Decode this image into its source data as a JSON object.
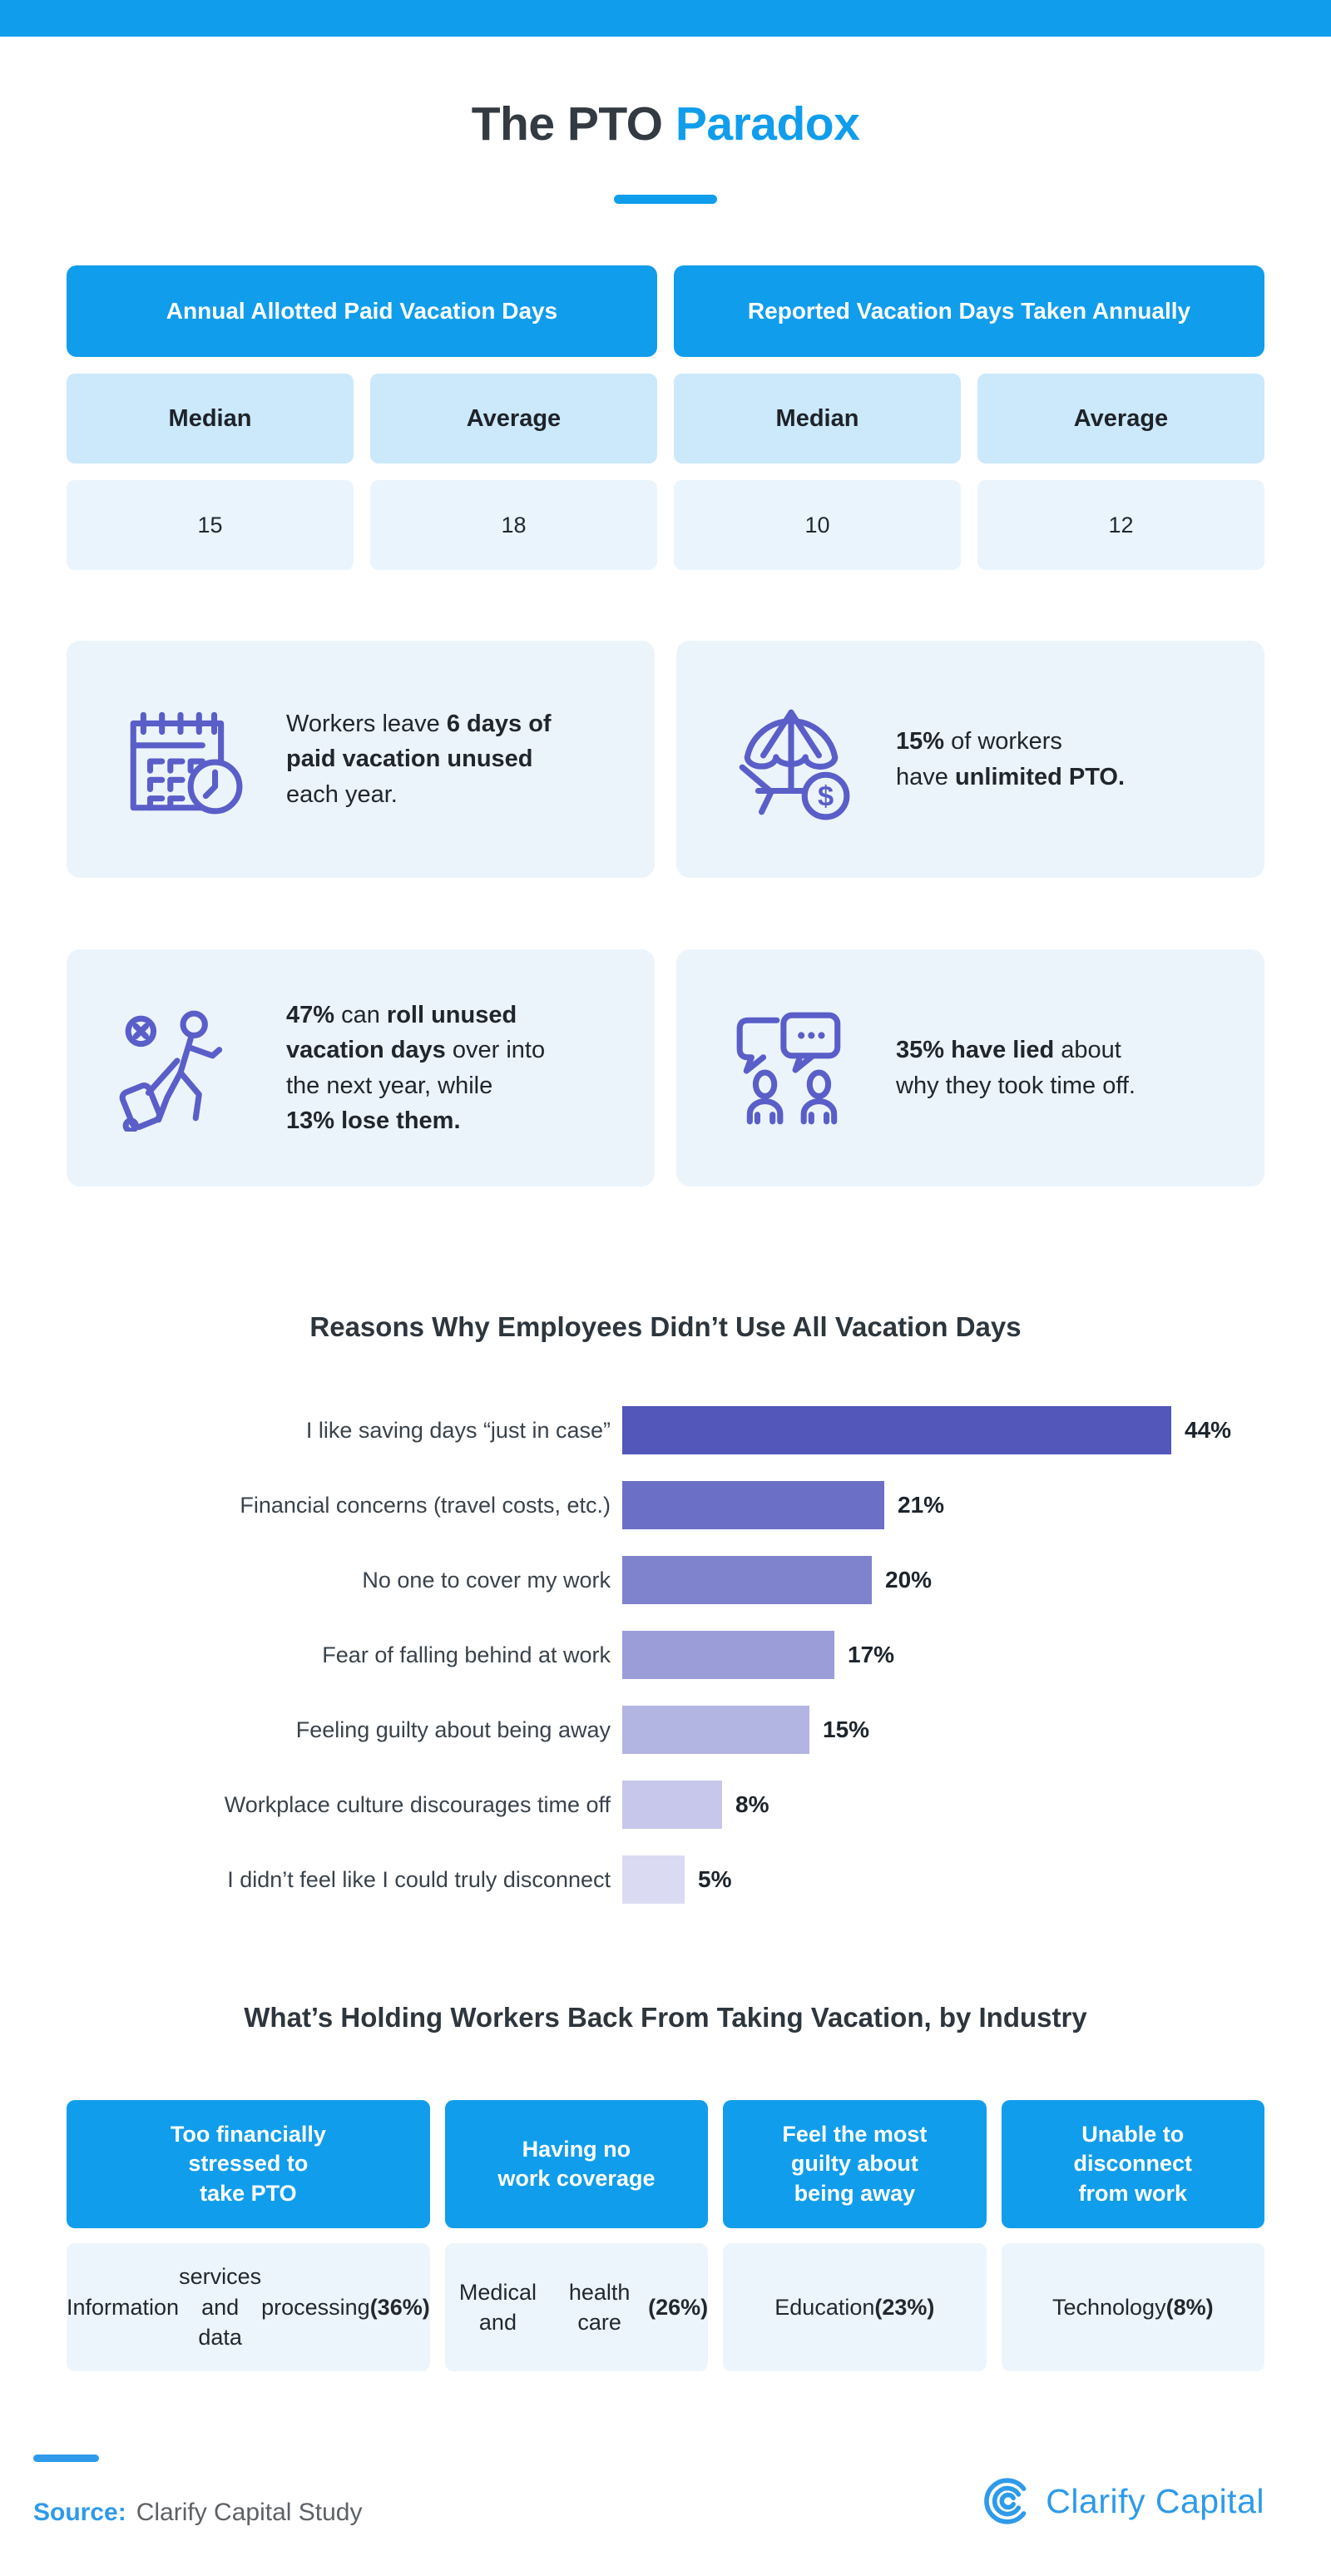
{
  "header": {
    "title_prefix": "The PTO ",
    "title_accent": "Paradox"
  },
  "vacation_table": {
    "groups": [
      {
        "title": "Annual Allotted Paid Vacation Days"
      },
      {
        "title": "Reported Vacation Days Taken Annually"
      }
    ],
    "col_headers": [
      "Median",
      "Average",
      "Median",
      "Average"
    ],
    "values": [
      "15",
      "18",
      "10",
      "12"
    ]
  },
  "stat_cards": [
    {
      "icon": "calendar-clock-icon",
      "segments": [
        {
          "text": "Workers leave ",
          "bold": false
        },
        {
          "text": "6 days of",
          "bold": true,
          "br": true
        },
        {
          "text": "paid vacation unused",
          "bold": true,
          "br": true
        },
        {
          "text": "each year.",
          "bold": false
        }
      ]
    },
    {
      "icon": "beach-umbrella-money-icon",
      "segments": [
        {
          "text": "15%",
          "bold": true
        },
        {
          "text": " of workers",
          "bold": false,
          "br": true
        },
        {
          "text": "have ",
          "bold": false
        },
        {
          "text": "unlimited PTO.",
          "bold": true
        }
      ]
    },
    {
      "icon": "traveler-luggage-icon",
      "segments": [
        {
          "text": "47%",
          "bold": true
        },
        {
          "text": " can ",
          "bold": false
        },
        {
          "text": "roll unused",
          "bold": true,
          "br": true
        },
        {
          "text": "vacation days",
          "bold": true
        },
        {
          "text": " over into",
          "bold": false,
          "br": true
        },
        {
          "text": "the next year, while",
          "bold": false,
          "br": true
        },
        {
          "text": "13% lose them.",
          "bold": true
        }
      ]
    },
    {
      "icon": "chat-people-icon",
      "segments": [
        {
          "text": "35% have lied",
          "bold": true
        },
        {
          "text": " about",
          "bold": false,
          "br": true
        },
        {
          "text": "why they took time off.",
          "bold": false
        }
      ]
    }
  ],
  "chart_data": {
    "type": "bar",
    "orientation": "horizontal",
    "title": "Reasons Why Employees Didn’t Use All Vacation Days",
    "categories": [
      "I like saving days “just in case”",
      "Financial concerns (travel costs, etc.)",
      "No one to cover my work",
      "Fear of falling behind at work",
      "Feeling guilty about being away",
      "Workplace culture discourages time off",
      "I didn’t feel like I could truly disconnect"
    ],
    "values": [
      44,
      21,
      20,
      17,
      15,
      8,
      5
    ],
    "value_labels": [
      "44%",
      "21%",
      "20%",
      "17%",
      "15%",
      "8%",
      "5%"
    ],
    "xlim": [
      0,
      44
    ],
    "grid": false,
    "legend": false,
    "bar_colors": [
      "#5257b9",
      "#6b6fc5",
      "#7f83cd",
      "#9a9dd8",
      "#b2b4e2",
      "#c6c7ea",
      "#dadbf2"
    ]
  },
  "industry": {
    "title": "What’s Holding Workers Back From Taking Vacation, by Industry",
    "columns": [
      {
        "header_lines": [
          "Too financially",
          "stressed to",
          "take PTO"
        ],
        "value_segments": [
          {
            "text": "Information",
            "bold": false,
            "br": true
          },
          {
            "text": "services and data",
            "bold": false,
            "br": true
          },
          {
            "text": "processing ",
            "bold": false
          },
          {
            "text": "(36%)",
            "bold": true
          }
        ]
      },
      {
        "header_lines": [
          "Having no",
          "work coverage"
        ],
        "value_segments": [
          {
            "text": "Medical and",
            "bold": false,
            "br": true
          },
          {
            "text": "health care ",
            "bold": false
          },
          {
            "text": "(26%)",
            "bold": true
          }
        ]
      },
      {
        "header_lines": [
          "Feel the most",
          "guilty about",
          "being away"
        ],
        "value_segments": [
          {
            "text": "Education ",
            "bold": false
          },
          {
            "text": "(23%)",
            "bold": true
          }
        ]
      },
      {
        "header_lines": [
          "Unable to",
          "disconnect",
          "from work"
        ],
        "value_segments": [
          {
            "text": "Technology ",
            "bold": false
          },
          {
            "text": "(8%)",
            "bold": true
          }
        ]
      }
    ]
  },
  "footer": {
    "source_label": "Source:",
    "source_value": "Clarify Capital Study",
    "brand": "Clarify Capital"
  },
  "colors": {
    "brand_blue": "#109deb",
    "accent_blue": "#2e9ae9",
    "table_subhead_bg": "#cce8fb",
    "table_value_bg": "#e9f4fd",
    "card_bg": "#ecf4fb",
    "icon_indigo": "#5a5ec8",
    "bar_dark": "#5257b9",
    "bar_light": "#dadbf2"
  }
}
